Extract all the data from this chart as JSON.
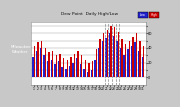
{
  "title": "Dew Point  Daily High/Low",
  "left_label": "Milwaukee\nWeather",
  "background_color": "#c8c8c8",
  "plot_bg": "#ffffff",
  "left_panel_color": "#2a2a2a",
  "ylim": [
    -10,
    75
  ],
  "yticks": [
    0,
    10,
    20,
    30,
    40,
    50,
    60,
    70
  ],
  "ytick_labels": [
    "0",
    "",
    "20",
    "",
    "40",
    "",
    "60",
    ""
  ],
  "high_color": "#cc0000",
  "low_color": "#2222cc",
  "grid_color": "#999999",
  "highs": [
    42,
    48,
    50,
    40,
    35,
    36,
    30,
    32,
    26,
    24,
    28,
    32,
    36,
    30,
    24,
    20,
    22,
    38,
    52,
    60,
    65,
    70,
    68,
    62,
    52,
    45,
    50,
    55,
    60,
    50,
    42
  ],
  "lows": [
    28,
    36,
    40,
    30,
    22,
    24,
    18,
    22,
    14,
    12,
    16,
    20,
    26,
    18,
    12,
    8,
    10,
    24,
    40,
    50,
    54,
    60,
    56,
    50,
    40,
    30,
    38,
    42,
    48,
    36,
    28
  ],
  "n_days": 31,
  "dashed_lines": [
    20,
    21,
    22,
    23,
    24
  ],
  "legend_labels": [
    "Low",
    "High"
  ],
  "legend_colors": [
    "#2222cc",
    "#cc0000"
  ]
}
